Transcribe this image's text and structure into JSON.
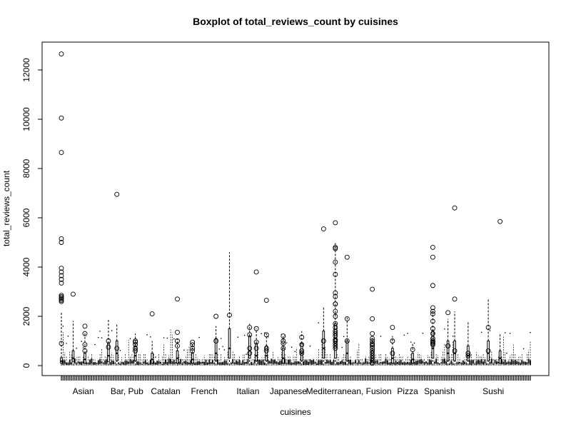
{
  "chart_data": {
    "type": "box",
    "title": "Boxplot of total_reviews_count by cuisines",
    "xlabel": "cuisines",
    "ylabel": "total_reviews_count",
    "ylim": [
      -400,
      13000
    ],
    "y_ticks": [
      0,
      2000,
      4000,
      6000,
      8000,
      10000,
      12000
    ],
    "grid": false,
    "legend": "none",
    "categories": [
      "Asian",
      "Bar, Pub",
      "Catalan",
      "French",
      "Italian",
      "Japanese",
      "Mediterranean, Fusion",
      "Pizza",
      "Spanish",
      "Sushi"
    ],
    "category_positions": [
      14,
      40,
      63,
      86,
      112,
      136,
      172,
      207,
      226,
      258
    ],
    "group_count": 280,
    "prominent_boxes": [
      {
        "x": 1,
        "q1": 100,
        "median": 180,
        "q3": 320,
        "whisker_high": 2150,
        "outliers": [
          12650,
          10050,
          8650,
          5150,
          5000,
          3950,
          3800,
          3650,
          3500,
          3350,
          2850,
          2800,
          2750,
          2700,
          2650,
          2600,
          900
        ]
      },
      {
        "x": 8,
        "q1": 150,
        "median": 300,
        "q3": 600,
        "whisker_high": 1800,
        "outliers": [
          2900
        ]
      },
      {
        "x": 15,
        "q1": 100,
        "median": 250,
        "q3": 500,
        "whisker_high": 1400,
        "outliers": [
          1600,
          1300,
          850,
          600
        ]
      },
      {
        "x": 29,
        "q1": 150,
        "median": 400,
        "q3": 900,
        "whisker_high": 1900,
        "outliers": [
          1000,
          750
        ]
      },
      {
        "x": 34,
        "q1": 200,
        "median": 500,
        "q3": 1000,
        "whisker_high": 1700,
        "outliers": [
          6950,
          700
        ]
      },
      {
        "x": 45,
        "q1": 200,
        "median": 400,
        "q3": 800,
        "whisker_high": 1300,
        "outliers": [
          1000,
          950,
          850,
          700,
          600
        ]
      },
      {
        "x": 55,
        "q1": 100,
        "median": 250,
        "q3": 500,
        "whisker_high": 1000,
        "outliers": [
          2100
        ]
      },
      {
        "x": 70,
        "q1": 100,
        "median": 300,
        "q3": 600,
        "whisker_high": 1100,
        "outliers": [
          1350,
          1000,
          800,
          2700
        ]
      },
      {
        "x": 79,
        "q1": 100,
        "median": 250,
        "q3": 500,
        "whisker_high": 900,
        "outliers": [
          950,
          850,
          700,
          600
        ]
      },
      {
        "x": 93,
        "q1": 200,
        "median": 500,
        "q3": 1100,
        "whisker_high": 1600,
        "outliers": [
          1000,
          2000
        ]
      },
      {
        "x": 101,
        "q1": 300,
        "median": 700,
        "q3": 1500,
        "whisker_high": 4600,
        "outliers": [
          2050
        ]
      },
      {
        "x": 113,
        "q1": 300,
        "median": 600,
        "q3": 1200,
        "whisker_high": 1700,
        "outliers": [
          1550,
          1250,
          700,
          500
        ]
      },
      {
        "x": 117,
        "q1": 200,
        "median": 400,
        "q3": 900,
        "whisker_high": 1500,
        "outliers": [
          3800,
          1500,
          950,
          700
        ]
      },
      {
        "x": 123,
        "q1": 200,
        "median": 400,
        "q3": 800,
        "whisker_high": 1300,
        "outliers": [
          2650,
          1250,
          700,
          600
        ]
      },
      {
        "x": 133,
        "q1": 100,
        "median": 300,
        "q3": 700,
        "whisker_high": 1200,
        "outliers": [
          1200,
          1000,
          900,
          700
        ]
      },
      {
        "x": 144,
        "q1": 200,
        "median": 500,
        "q3": 900,
        "whisker_high": 1400,
        "outliers": [
          1150,
          850,
          600,
          500
        ]
      },
      {
        "x": 157,
        "q1": 300,
        "median": 700,
        "q3": 1400,
        "whisker_high": 2400,
        "outliers": [
          5550,
          1000
        ]
      },
      {
        "x": 164,
        "q1": 300,
        "median": 800,
        "q3": 1700,
        "whisker_high": 5000,
        "outliers": [
          5800,
          4800,
          4750,
          4200,
          3700,
          2950,
          2800,
          2500,
          2500,
          2200,
          2000,
          1700,
          1550,
          1400,
          1300,
          1200,
          1050,
          1000,
          900,
          800,
          700
        ]
      },
      {
        "x": 171,
        "q1": 200,
        "median": 500,
        "q3": 1000,
        "whisker_high": 2000,
        "outliers": [
          4400,
          1900,
          1000
        ]
      },
      {
        "x": 186,
        "q1": 150,
        "median": 300,
        "q3": 600,
        "whisker_high": 1200,
        "outliers": [
          3100,
          1900,
          1300,
          1100,
          1000,
          900,
          850,
          800,
          700,
          600,
          500,
          400,
          300,
          200,
          100
        ]
      },
      {
        "x": 198,
        "q1": 100,
        "median": 300,
        "q3": 700,
        "whisker_high": 1200,
        "outliers": [
          1550,
          1000,
          500
        ]
      },
      {
        "x": 210,
        "q1": 100,
        "median": 250,
        "q3": 500,
        "whisker_high": 900,
        "outliers": [
          650
        ]
      },
      {
        "x": 222,
        "q1": 300,
        "median": 700,
        "q3": 1400,
        "whisker_high": 2300,
        "outliers": [
          4800,
          4400,
          3250,
          2350,
          2200,
          2100,
          1800,
          1500,
          1300,
          1100,
          1000,
          950,
          900,
          850
        ]
      },
      {
        "x": 231,
        "q1": 200,
        "median": 500,
        "q3": 1000,
        "whisker_high": 1900,
        "outliers": [
          2150,
          800,
          800
        ]
      },
      {
        "x": 235,
        "q1": 200,
        "median": 500,
        "q3": 1000,
        "whisker_high": 2200,
        "outliers": [
          6400,
          2700,
          600
        ]
      },
      {
        "x": 243,
        "q1": 200,
        "median": 400,
        "q3": 800,
        "whisker_high": 1800,
        "outliers": [
          500,
          400
        ]
      },
      {
        "x": 255,
        "q1": 200,
        "median": 500,
        "q3": 1000,
        "whisker_high": 2700,
        "outliers": [
          1550,
          600
        ]
      },
      {
        "x": 262,
        "q1": 100,
        "median": 300,
        "q3": 600,
        "whisker_high": 1300,
        "outliers": [
          5850
        ]
      }
    ]
  }
}
